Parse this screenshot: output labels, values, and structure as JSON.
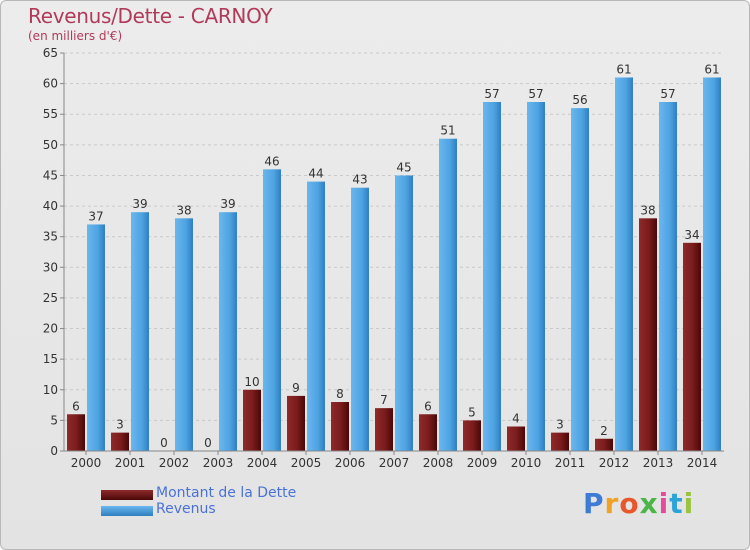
{
  "title": "Revenus/Dette - CARNOY",
  "subtitle": "(en milliers d'€)",
  "colors": {
    "debt": "#7a1b1b",
    "debt_dark": "#4a0808",
    "revenue": "#5aabe6",
    "revenue_dark": "#2f7fc0",
    "grid": "#c9c9c9",
    "title": "#b13a5a",
    "legend_text": "#4a72d6"
  },
  "logo": {
    "text": "Proxiti"
  },
  "chart_data": {
    "type": "bar",
    "categories": [
      "2000",
      "2001",
      "2002",
      "2003",
      "2004",
      "2005",
      "2006",
      "2007",
      "2008",
      "2009",
      "2010",
      "2011",
      "2012",
      "2013",
      "2014"
    ],
    "series": [
      {
        "name": "Montant de la Dette",
        "values": [
          6,
          3,
          0,
          0,
          10,
          9,
          8,
          7,
          6,
          5,
          4,
          3,
          2,
          38,
          34
        ]
      },
      {
        "name": "Revenus",
        "values": [
          37,
          39,
          38,
          39,
          46,
          44,
          43,
          45,
          51,
          57,
          57,
          56,
          61,
          57,
          61
        ]
      }
    ],
    "ylim": [
      0,
      65
    ],
    "yticks": [
      0,
      5,
      10,
      15,
      20,
      25,
      30,
      35,
      40,
      45,
      50,
      55,
      60,
      65
    ],
    "grid": true,
    "legend": "bottom-left"
  }
}
